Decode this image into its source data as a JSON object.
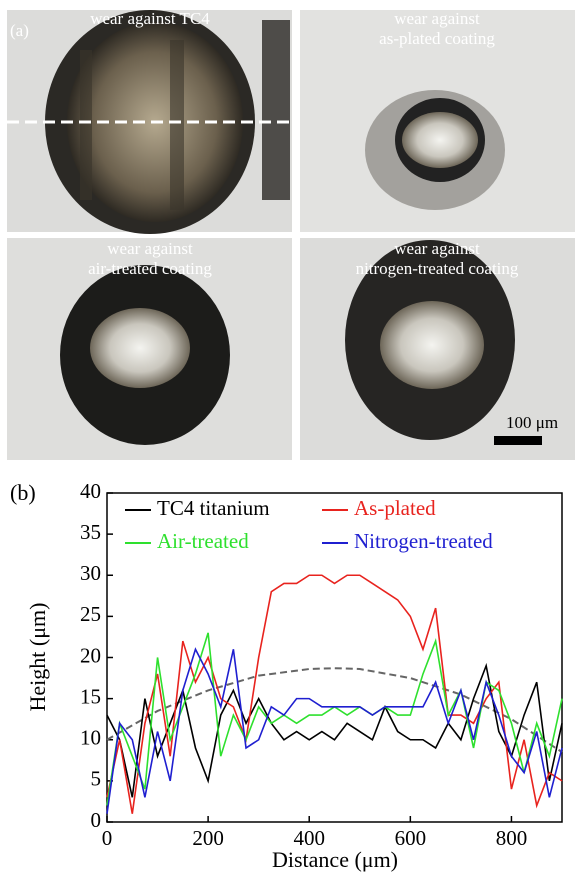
{
  "panel_a": {
    "label": "(a)",
    "images": [
      {
        "caption": [
          "wear against TC4"
        ]
      },
      {
        "caption": [
          "wear against",
          "as-plated coating"
        ]
      },
      {
        "caption": [
          "wear against",
          "air-treated coating"
        ]
      },
      {
        "caption": [
          "wear against",
          "nitrogen-treated coating"
        ]
      }
    ],
    "scale_bar": "100 μm"
  },
  "chart_data": {
    "type": "line",
    "panel_label": "(b)",
    "x_label": "Distance (μm)",
    "y_label": "Height (μm)",
    "xlim": [
      0,
      900
    ],
    "ylim": [
      0,
      40
    ],
    "xticks": [
      0,
      200,
      400,
      600,
      800
    ],
    "yticks": [
      0,
      5,
      10,
      15,
      20,
      25,
      30,
      35,
      40
    ],
    "x": [
      0,
      25,
      50,
      75,
      100,
      125,
      150,
      175,
      200,
      225,
      250,
      275,
      300,
      325,
      350,
      375,
      400,
      425,
      450,
      475,
      500,
      525,
      550,
      575,
      600,
      625,
      650,
      675,
      700,
      725,
      750,
      775,
      800,
      825,
      850,
      875,
      900
    ],
    "series": [
      {
        "name": "TC4 titanium",
        "color": "#000000",
        "values": [
          13,
          10,
          3,
          15,
          8,
          12,
          16,
          9,
          5,
          13,
          16,
          12,
          15,
          12,
          10,
          11,
          10,
          11,
          10,
          12,
          11,
          10,
          14,
          11,
          10,
          10,
          9,
          12,
          10,
          15,
          19,
          11,
          8,
          13,
          17,
          5,
          12
        ]
      },
      {
        "name": "As-plated",
        "color": "#e8231e",
        "values": [
          3,
          10,
          1,
          12,
          18,
          8,
          22,
          17,
          20,
          15,
          14,
          10,
          20,
          28,
          29,
          29,
          30,
          30,
          29,
          30,
          30,
          29,
          28,
          27,
          25,
          21,
          26,
          13,
          13,
          12,
          15,
          17,
          4,
          10,
          2,
          6,
          5
        ]
      },
      {
        "name": "Air-treated",
        "color": "#2ee02e",
        "values": [
          2,
          12,
          8,
          4,
          20,
          10,
          14,
          18,
          23,
          8,
          13,
          10,
          14,
          12,
          13,
          12,
          13,
          13,
          14,
          13,
          14,
          13,
          14,
          13,
          13,
          18,
          22,
          13,
          16,
          9,
          17,
          16,
          12,
          6,
          12,
          8,
          15
        ]
      },
      {
        "name": "Nitrogen-treated",
        "color": "#1f1fd0",
        "values": [
          1,
          12,
          10,
          3,
          11,
          5,
          16,
          21,
          18,
          14,
          21,
          9,
          10,
          14,
          13,
          15,
          15,
          14,
          14,
          14,
          14,
          13,
          14,
          14,
          14,
          14,
          17,
          12,
          16,
          10,
          17,
          13,
          8,
          6,
          11,
          3,
          9
        ]
      }
    ],
    "reference_curve": {
      "color": "#666666",
      "dashed": true,
      "x": [
        0,
        100,
        200,
        300,
        400,
        450,
        500,
        600,
        700,
        800,
        900
      ],
      "values": [
        10,
        13.5,
        16,
        17.8,
        18.6,
        18.7,
        18.6,
        17.5,
        15.5,
        12.5,
        8.5
      ]
    }
  }
}
